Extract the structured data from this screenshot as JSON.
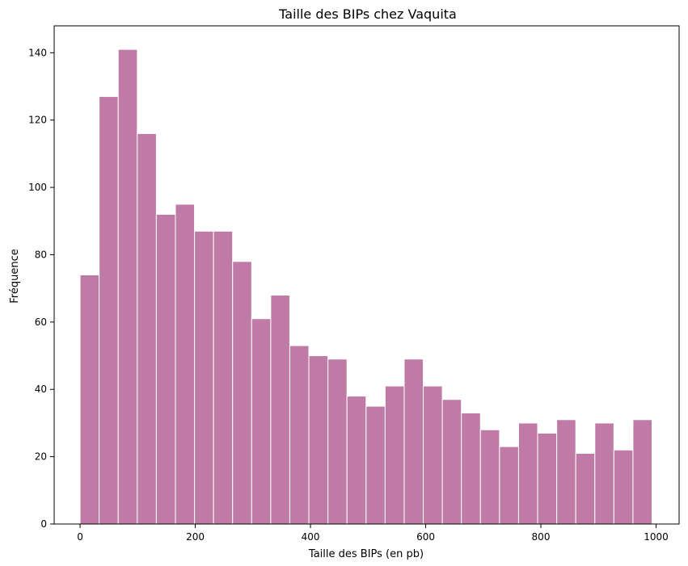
{
  "chart_data": {
    "type": "bar",
    "title": "Taille des BIPs chez Vaquita",
    "xlabel": "Taille des BIPs (en pb)",
    "ylabel": "Fréquence",
    "bar_color": "#bf7ba6",
    "edge_color": "#ffffff",
    "grid": false,
    "legend": "none",
    "xlim": [
      -45,
      1040
    ],
    "ylim": [
      0,
      148
    ],
    "xticks": [
      0,
      200,
      400,
      600,
      800,
      1000
    ],
    "yticks": [
      0,
      20,
      40,
      60,
      80,
      100,
      120,
      140
    ],
    "bin_start": 0,
    "bin_width": 33.1,
    "values": [
      74,
      127,
      141,
      116,
      92,
      95,
      87,
      87,
      78,
      61,
      68,
      53,
      50,
      49,
      38,
      35,
      41,
      49,
      41,
      37,
      33,
      28,
      23,
      30,
      27,
      31,
      21,
      30,
      22,
      31
    ]
  }
}
